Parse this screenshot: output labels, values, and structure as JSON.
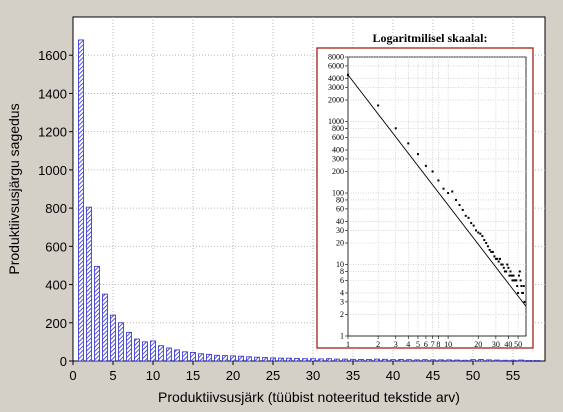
{
  "chart_data": [
    {
      "type": "bar",
      "title": "",
      "xlabel": "Produktiivsusjärk (tüübist noteeritud tekstide arv)",
      "ylabel": "Produktiivsusjärgu sagedus",
      "xlim": [
        0,
        59
      ],
      "ylim": [
        0,
        1800
      ],
      "x_ticks": [
        0,
        5,
        10,
        15,
        20,
        25,
        30,
        35,
        40,
        45,
        50,
        55
      ],
      "y_ticks": [
        0,
        200,
        400,
        600,
        800,
        1000,
        1200,
        1400,
        1600
      ],
      "grid": true,
      "bar_fill": "#2b2bd0",
      "x": [
        1,
        2,
        3,
        4,
        5,
        6,
        7,
        8,
        9,
        10,
        11,
        12,
        13,
        14,
        15,
        16,
        17,
        18,
        19,
        20,
        21,
        22,
        23,
        24,
        25,
        26,
        27,
        28,
        29,
        30,
        31,
        32,
        33,
        34,
        35,
        36,
        37,
        38,
        39,
        40,
        41,
        42,
        43,
        44,
        45,
        46,
        47,
        48,
        49,
        50,
        51,
        52,
        53,
        54,
        55,
        56,
        57,
        58
      ],
      "values": [
        1680,
        805,
        495,
        350,
        240,
        200,
        150,
        115,
        100,
        105,
        80,
        68,
        58,
        48,
        45,
        38,
        35,
        30,
        28,
        27,
        25,
        22,
        20,
        18,
        16,
        15,
        15,
        13,
        12,
        12,
        11,
        12,
        10,
        10,
        9,
        8,
        8,
        10,
        9,
        7,
        8,
        7,
        6,
        7,
        6,
        6,
        6,
        5,
        4,
        7,
        8,
        6,
        5,
        4,
        4,
        5,
        3,
        3
      ]
    },
    {
      "type": "scatter",
      "title": "Logaritmilisel skaalal:",
      "x_scale": "log",
      "y_scale": "log",
      "xlim": [
        1,
        60
      ],
      "ylim": [
        1,
        8000
      ],
      "grid": true,
      "x_ticks": [
        1,
        2,
        3,
        4,
        5,
        6,
        7,
        8,
        10,
        20,
        30,
        40,
        50
      ],
      "y_ticks": [
        1,
        2,
        3,
        4,
        6,
        8,
        10,
        20,
        30,
        40,
        60,
        80,
        100,
        200,
        300,
        400,
        600,
        800,
        1000,
        2000,
        3000,
        4000,
        6000,
        8000
      ],
      "x_tick_labels": [
        "1",
        "2",
        "3",
        "4",
        "5",
        "6",
        "7",
        "8",
        "10",
        "20",
        "30",
        "40",
        "50"
      ],
      "y_tick_labels": [
        "1",
        "2",
        "3",
        "4",
        "6",
        "8",
        "10",
        "20",
        "30",
        "40",
        "60",
        "80",
        "100",
        "200",
        "300",
        "400",
        "600",
        "800",
        "1000",
        "2000",
        "3000",
        "4000",
        "6000",
        "8000"
      ],
      "frame_color": "#a83228",
      "points": [
        [
          1,
          4500
        ],
        [
          2,
          1680
        ],
        [
          3,
          805
        ],
        [
          4,
          495
        ],
        [
          5,
          350
        ],
        [
          6,
          240
        ],
        [
          7,
          200
        ],
        [
          8,
          150
        ],
        [
          9,
          115
        ],
        [
          10,
          100
        ],
        [
          11,
          105
        ],
        [
          12,
          80
        ],
        [
          13,
          68
        ],
        [
          14,
          58
        ],
        [
          15,
          48
        ],
        [
          16,
          45
        ],
        [
          17,
          38
        ],
        [
          18,
          35
        ],
        [
          19,
          30
        ],
        [
          20,
          28
        ],
        [
          21,
          27
        ],
        [
          22,
          25
        ],
        [
          23,
          22
        ],
        [
          24,
          20
        ],
        [
          25,
          18
        ],
        [
          26,
          16
        ],
        [
          27,
          15
        ],
        [
          28,
          15
        ],
        [
          29,
          13
        ],
        [
          30,
          12
        ],
        [
          31,
          12
        ],
        [
          32,
          11
        ],
        [
          33,
          12
        ],
        [
          34,
          10
        ],
        [
          35,
          10
        ],
        [
          36,
          9
        ],
        [
          37,
          8
        ],
        [
          38,
          8
        ],
        [
          39,
          10
        ],
        [
          40,
          9
        ],
        [
          41,
          7
        ],
        [
          42,
          8
        ],
        [
          43,
          7
        ],
        [
          44,
          6
        ],
        [
          45,
          7
        ],
        [
          46,
          6
        ],
        [
          47,
          6
        ],
        [
          48,
          6
        ],
        [
          49,
          5
        ],
        [
          50,
          4
        ],
        [
          51,
          7
        ],
        [
          52,
          8
        ],
        [
          53,
          6
        ],
        [
          54,
          5
        ],
        [
          55,
          4
        ],
        [
          56,
          4
        ],
        [
          57,
          5
        ],
        [
          58,
          3
        ]
      ],
      "fit_line": [
        [
          1,
          4500
        ],
        [
          60,
          2.6
        ]
      ]
    }
  ]
}
